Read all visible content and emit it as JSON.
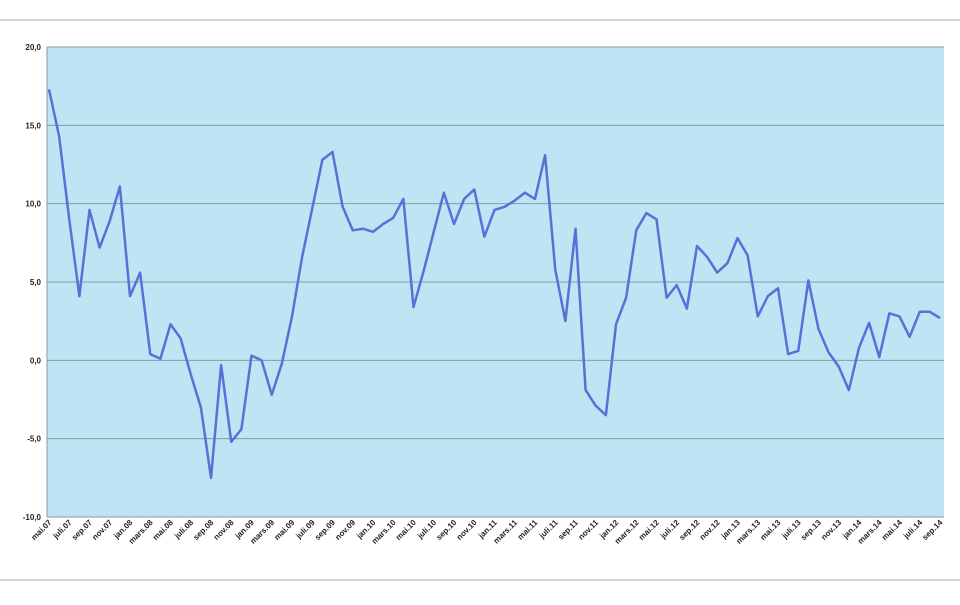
{
  "chart_data": {
    "type": "line",
    "categories": [
      "mai.07",
      null,
      "juli.07",
      null,
      "sep.07",
      null,
      "nov.07",
      null,
      "jan.08",
      null,
      "mars.08",
      null,
      "mai.08",
      null,
      "juli.08",
      null,
      "sep.08",
      null,
      "nov.08",
      null,
      "jan.09",
      null,
      "mars.09",
      null,
      "mai.09",
      null,
      "juli.09",
      null,
      "sep.09",
      null,
      "nov.09",
      null,
      "jan.10",
      null,
      "mars.10",
      null,
      "mai.10",
      null,
      "juli.10",
      null,
      "sep.10",
      null,
      "nov.10",
      null,
      "jan.11",
      null,
      "mars.11",
      null,
      "mai.11",
      null,
      "juli.11",
      null,
      "sep.11",
      null,
      "nov.11",
      null,
      "jan.12",
      null,
      "mars.12",
      null,
      "mai.12",
      null,
      "juli.12",
      null,
      "sep.12",
      null,
      "nov.12",
      null,
      "jan.13",
      null,
      "mars.13",
      null,
      "mai.13",
      null,
      "juli.13",
      null,
      "sep.13",
      null,
      "nov.13",
      null,
      "jan.14",
      null,
      "mars.14",
      null,
      "mai.14",
      null,
      "juli.14",
      null,
      "sep.14"
    ],
    "series": [
      {
        "color": "#5b6fd6",
        "values": [
          17.3,
          14.3,
          9,
          4.1,
          9.6,
          7.2,
          8.9,
          11.1,
          4.1,
          5.6,
          0.4,
          0.1,
          2.3,
          1.4,
          -0.9,
          -3,
          -7.5,
          -0.3,
          -5.2,
          -4.4,
          0.3,
          0,
          -2.2,
          -0.2,
          2.8,
          6.6,
          9.7,
          12.8,
          13.3,
          9.8,
          8.3,
          8.4,
          8.2,
          8.7,
          9.1,
          10.3,
          3.4,
          5.7,
          8.2,
          10.7,
          8.7,
          10.3,
          10.9,
          7.9,
          9.6,
          9.8,
          10.2,
          10.7,
          10.3,
          13.1,
          5.8,
          2.5,
          8.4,
          -1.9,
          -2.9,
          -3.5,
          2.3,
          4,
          8.3,
          9.4,
          9,
          4,
          4.8,
          3.3,
          7.3,
          6.6,
          5.6,
          6.2,
          7.8,
          6.7,
          2.8,
          4.1,
          4.6,
          0.4,
          0.6,
          5.1,
          2,
          0.5,
          -0.4,
          -1.9,
          0.8,
          2.4,
          0.2,
          3,
          2.8,
          1.5,
          3.1,
          3.1,
          2.7
        ]
      }
    ],
    "ylim": [
      -10,
      20
    ],
    "yticks": [
      {
        "value": -10,
        "label": "-10,0"
      },
      {
        "value": -5,
        "label": "-5,0"
      },
      {
        "value": 0,
        "label": "0,0"
      },
      {
        "value": 5,
        "label": "5,0"
      },
      {
        "value": 10,
        "label": "10,0"
      },
      {
        "value": 15,
        "label": "15,0"
      },
      {
        "value": 20,
        "label": "20,0"
      }
    ],
    "grid": true,
    "background": "#bfe4f4"
  }
}
